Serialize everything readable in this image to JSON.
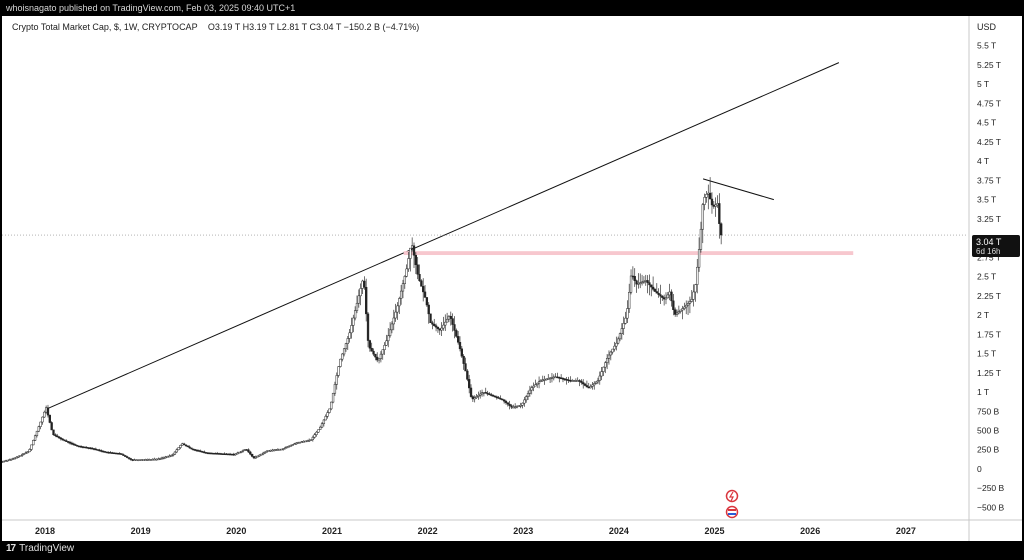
{
  "header": {
    "published": "whoisnagato published on TradingView.com, Feb 03, 2025 09:40 UTC+1"
  },
  "legend": {
    "symbol": "Crypto Total Market Cap, $, 1W, CRYPTOCAP",
    "ohlc": "O3.19 T  H3.19 T  L2.81 T  C3.04 T  −150.2 B (−4.71%)"
  },
  "footer": {
    "logo_glyph": "17",
    "brand": "TradingView"
  },
  "price_tag": {
    "price": "3.04 T",
    "countdown": "6d 16h"
  },
  "colors": {
    "line": "#111111",
    "candle": "#222222",
    "support_zone": "#f7c7ce",
    "event_icon": "#d9363e"
  },
  "icons": [
    "flash-icon",
    "us-flag-icon"
  ],
  "chart_data": {
    "type": "candlestick",
    "currency_label": "USD",
    "y_ticks": [
      "−500 B",
      "−250 B",
      "0",
      "250 B",
      "500 B",
      "750 B",
      "1 T",
      "1.25 T",
      "1.5 T",
      "1.75 T",
      "2 T",
      "2.25 T",
      "2.5 T",
      "2.75 T",
      "3 T",
      "3.25 T",
      "3.5 T",
      "3.75 T",
      "4 T",
      "4.25 T",
      "4.5 T",
      "4.75 T",
      "5 T",
      "5.25 T",
      "5.5 T"
    ],
    "y_tick_values": [
      -0.5,
      -0.25,
      0,
      0.25,
      0.5,
      0.75,
      1,
      1.25,
      1.5,
      1.75,
      2,
      2.25,
      2.5,
      2.75,
      3,
      3.25,
      3.5,
      3.75,
      4,
      4.25,
      4.5,
      4.75,
      5,
      5.25,
      5.5
    ],
    "x_ticks": [
      "2018",
      "2019",
      "2020",
      "2021",
      "2022",
      "2023",
      "2024",
      "2025",
      "2026",
      "2027"
    ],
    "x_tick_values": [
      2018,
      2019,
      2020,
      2021,
      2022,
      2023,
      2024,
      2025,
      2026,
      2027
    ],
    "xlim": [
      2017.55,
      2027.65
    ],
    "ylim": [
      -0.65,
      5.6
    ],
    "series": [
      {
        "unit": "T USD",
        "points": [
          [
            2017.55,
            0.09
          ],
          [
            2017.7,
            0.14
          ],
          [
            2017.85,
            0.23
          ],
          [
            2017.97,
            0.6
          ],
          [
            2018.03,
            0.8
          ],
          [
            2018.1,
            0.45
          ],
          [
            2018.2,
            0.38
          ],
          [
            2018.35,
            0.3
          ],
          [
            2018.5,
            0.27
          ],
          [
            2018.65,
            0.22
          ],
          [
            2018.8,
            0.2
          ],
          [
            2018.92,
            0.12
          ],
          [
            2019.0,
            0.12
          ],
          [
            2019.2,
            0.13
          ],
          [
            2019.35,
            0.18
          ],
          [
            2019.45,
            0.33
          ],
          [
            2019.55,
            0.26
          ],
          [
            2019.7,
            0.21
          ],
          [
            2019.85,
            0.2
          ],
          [
            2020.0,
            0.19
          ],
          [
            2020.12,
            0.26
          ],
          [
            2020.2,
            0.14
          ],
          [
            2020.35,
            0.24
          ],
          [
            2020.5,
            0.26
          ],
          [
            2020.65,
            0.34
          ],
          [
            2020.8,
            0.38
          ],
          [
            2020.9,
            0.55
          ],
          [
            2021.0,
            0.8
          ],
          [
            2021.1,
            1.4
          ],
          [
            2021.2,
            1.75
          ],
          [
            2021.35,
            2.5
          ],
          [
            2021.4,
            1.6
          ],
          [
            2021.5,
            1.4
          ],
          [
            2021.6,
            1.7
          ],
          [
            2021.7,
            2.1
          ],
          [
            2021.8,
            2.6
          ],
          [
            2021.85,
            2.95
          ],
          [
            2021.92,
            2.5
          ],
          [
            2022.0,
            2.2
          ],
          [
            2022.05,
            1.9
          ],
          [
            2022.15,
            1.8
          ],
          [
            2022.25,
            2.0
          ],
          [
            2022.35,
            1.6
          ],
          [
            2022.42,
            1.25
          ],
          [
            2022.48,
            0.9
          ],
          [
            2022.6,
            1.0
          ],
          [
            2022.7,
            0.95
          ],
          [
            2022.8,
            0.9
          ],
          [
            2022.9,
            0.8
          ],
          [
            2023.0,
            0.83
          ],
          [
            2023.1,
            1.05
          ],
          [
            2023.2,
            1.15
          ],
          [
            2023.35,
            1.2
          ],
          [
            2023.5,
            1.15
          ],
          [
            2023.6,
            1.15
          ],
          [
            2023.7,
            1.05
          ],
          [
            2023.8,
            1.15
          ],
          [
            2023.9,
            1.45
          ],
          [
            2024.0,
            1.65
          ],
          [
            2024.1,
            2.0
          ],
          [
            2024.15,
            2.55
          ],
          [
            2024.2,
            2.4
          ],
          [
            2024.3,
            2.45
          ],
          [
            2024.4,
            2.3
          ],
          [
            2024.5,
            2.2
          ],
          [
            2024.55,
            2.3
          ],
          [
            2024.6,
            2.0
          ],
          [
            2024.7,
            2.1
          ],
          [
            2024.78,
            2.2
          ],
          [
            2024.82,
            2.4
          ],
          [
            2024.87,
            3.0
          ],
          [
            2024.9,
            3.5
          ],
          [
            2024.95,
            3.6
          ],
          [
            2025.0,
            3.4
          ],
          [
            2025.05,
            3.45
          ],
          [
            2025.08,
            3.04
          ]
        ]
      }
    ],
    "annotations": [
      {
        "type": "trendline",
        "from": [
          2018.0,
          0.77
        ],
        "to": [
          2026.3,
          5.28
        ]
      },
      {
        "type": "trendline",
        "from": [
          2024.88,
          3.77
        ],
        "to": [
          2025.62,
          3.5
        ]
      },
      {
        "type": "zone",
        "x": [
          2021.75,
          2026.45
        ],
        "y": [
          2.78,
          2.83
        ]
      },
      {
        "type": "price-line",
        "y": 3.04
      }
    ]
  }
}
